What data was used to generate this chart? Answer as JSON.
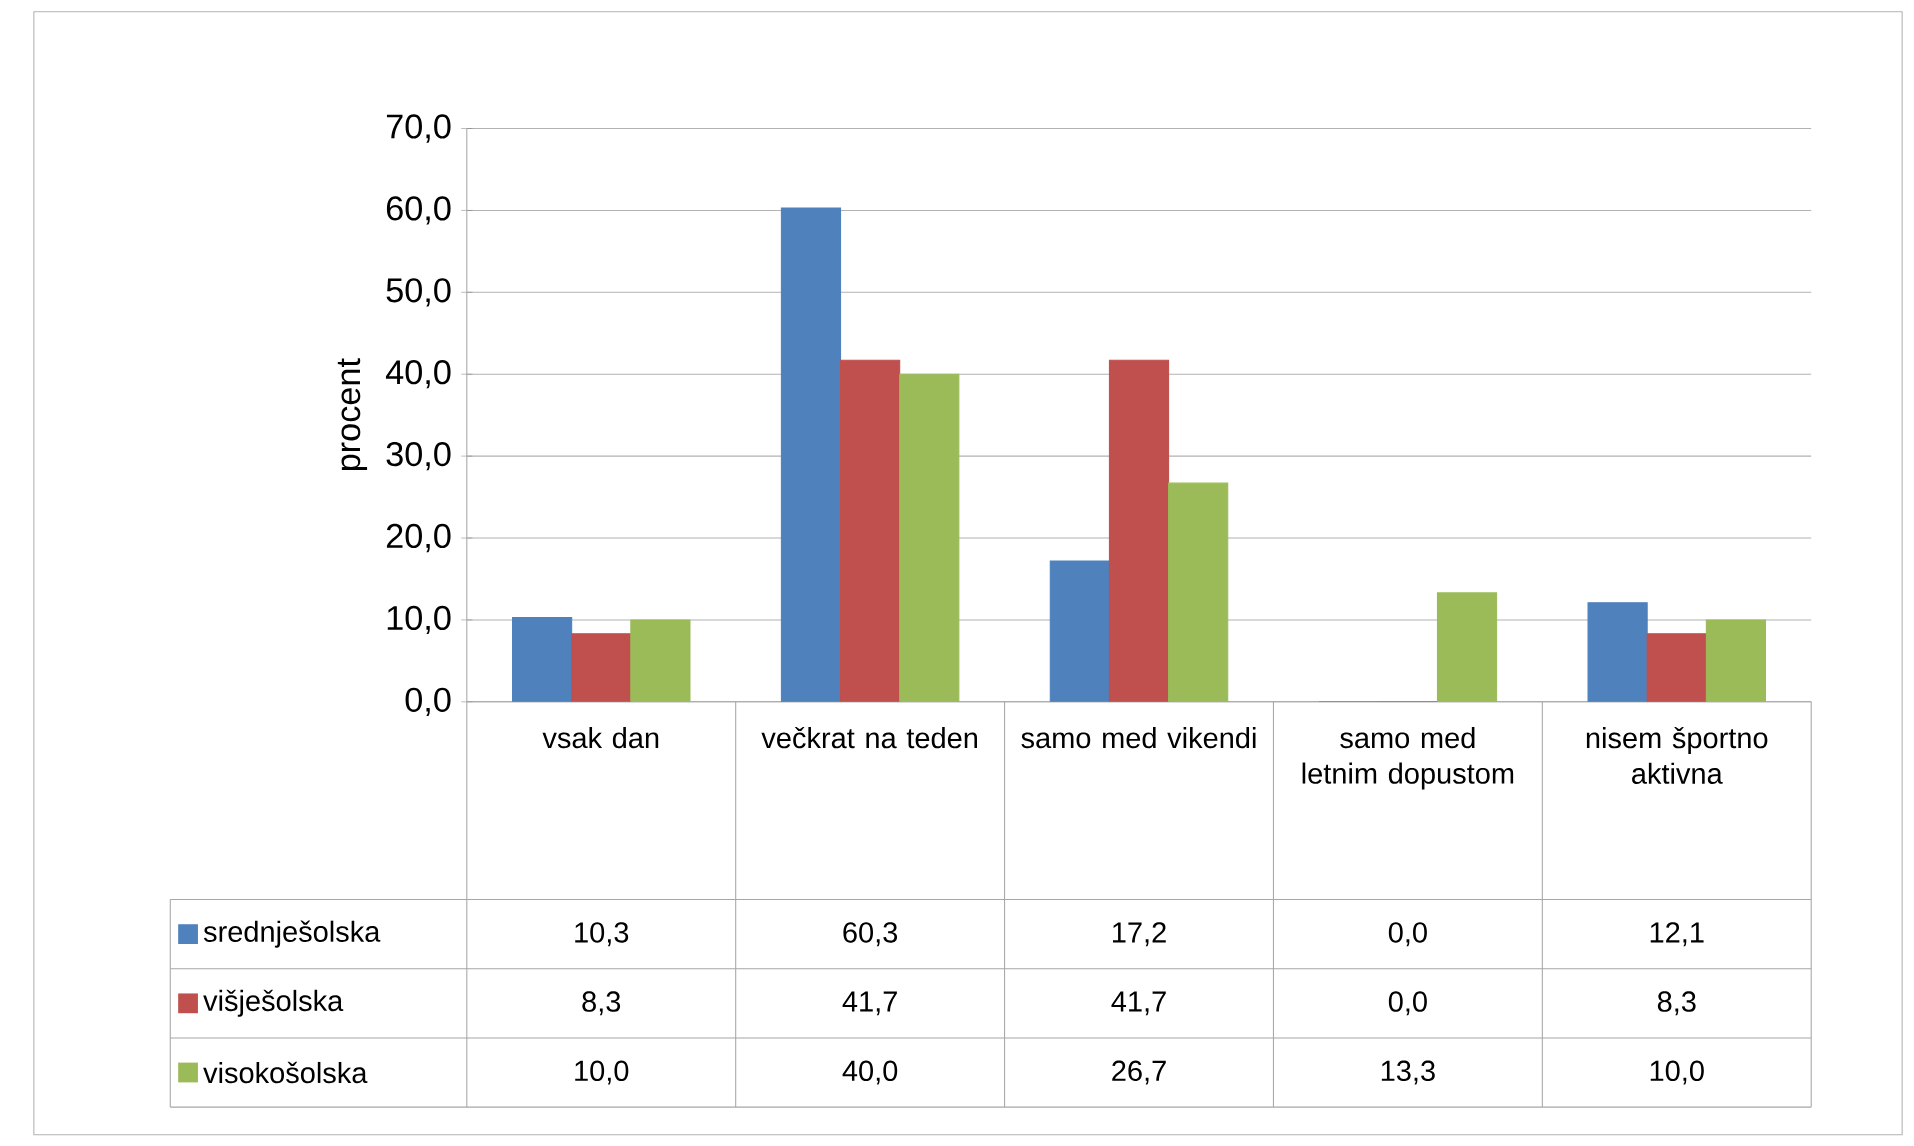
{
  "chart_data": {
    "type": "bar",
    "ylabel": "procent",
    "categories": [
      "vsak dan",
      "večkrat na teden",
      "samo med vikendi",
      "samo med letnim dopustom",
      "nisem športno aktivna"
    ],
    "series": [
      {
        "name": "srednješolska",
        "color": "#4f81bd",
        "values": [
          10.3,
          60.3,
          17.2,
          0.0,
          12.1
        ],
        "value_labels": [
          "10,3",
          "60,3",
          "17,2",
          "0,0",
          "12,1"
        ]
      },
      {
        "name": "višješolska",
        "color": "#c0504d",
        "values": [
          8.3,
          41.7,
          41.7,
          0.0,
          8.3
        ],
        "value_labels": [
          "8,3",
          "41,7",
          "41,7",
          "0,0",
          "8,3"
        ]
      },
      {
        "name": "visokošolska",
        "color": "#9bbb59",
        "values": [
          10.0,
          40.0,
          26.7,
          13.3,
          10.0
        ],
        "value_labels": [
          "10,0",
          "40,0",
          "26,7",
          "13,3",
          "10,0"
        ]
      }
    ],
    "ylim": [
      0,
      70
    ],
    "yticks": [
      {
        "value": 0,
        "label": "0,0"
      },
      {
        "value": 10,
        "label": "10,0"
      },
      {
        "value": 20,
        "label": "20,0"
      },
      {
        "value": 30,
        "label": "30,0"
      },
      {
        "value": 40,
        "label": "40,0"
      },
      {
        "value": 50,
        "label": "50,0"
      },
      {
        "value": 60,
        "label": "60,0"
      },
      {
        "value": 70,
        "label": "70,0"
      }
    ],
    "grid": "y",
    "legend": "bottom"
  }
}
